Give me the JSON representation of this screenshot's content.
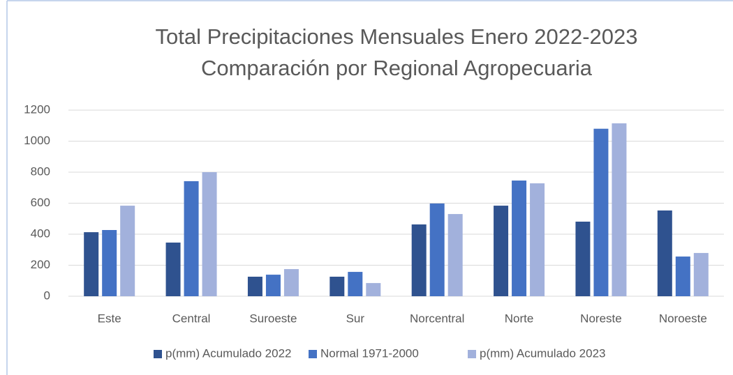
{
  "chart_data": {
    "type": "bar",
    "title": "Total Precipitaciones Mensuales Enero 2022-2023",
    "subtitle": "Comparación por Regional Agropecuaria",
    "categories": [
      "Este",
      "Central",
      "Suroeste",
      "Sur",
      "Norcentral",
      "Norte",
      "Noreste",
      "Noroeste"
    ],
    "series": [
      {
        "name": "p(mm) Acumulado 2022",
        "color": "#2f528f",
        "values": [
          413,
          346,
          126,
          126,
          463,
          584,
          481,
          553
        ]
      },
      {
        "name": "Normal 1971-2000",
        "color": "#4472c4",
        "values": [
          427,
          742,
          139,
          157,
          598,
          746,
          1080,
          256
        ]
      },
      {
        "name": "p(mm) Acumulado 2023",
        "color": "#a2b1dc",
        "values": [
          584,
          800,
          175,
          85,
          530,
          728,
          1115,
          279
        ]
      }
    ],
    "ylim": [
      0,
      1200
    ],
    "yticks": [
      0,
      200,
      400,
      600,
      800,
      1000,
      1200
    ],
    "grid": true,
    "legend": "bottom"
  }
}
